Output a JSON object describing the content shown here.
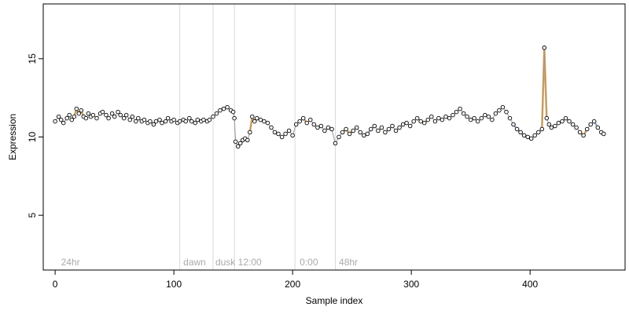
{
  "chart_data": {
    "type": "scatter",
    "xlabel": "Sample index",
    "ylabel": "Expression",
    "xlim": [
      -10,
      480
    ],
    "ylim": [
      1.5,
      18.5
    ],
    "x_ticks": [
      0,
      100,
      200,
      300,
      400
    ],
    "y_ticks": [
      5,
      10,
      15
    ],
    "grid": false,
    "legend": "none",
    "colors": {
      "line_orange": "#e8a040",
      "line_blue": "#9ab8e0",
      "line_gray": "#999999",
      "marker_edge": "#000000",
      "marker_fill": "#ffffff",
      "divider": "#d9d9d9",
      "region_text": "#aaaaaa",
      "frame": "#000000"
    },
    "region_boundaries": [
      105,
      133,
      151,
      202,
      236
    ],
    "region_labels": [
      {
        "x": 3,
        "label": "24hr"
      },
      {
        "x": 106,
        "label": "dawn"
      },
      {
        "x": 133,
        "label": "dusk"
      },
      {
        "x": 152,
        "label": "12:00"
      },
      {
        "x": 204,
        "label": "0:00"
      },
      {
        "x": 237,
        "label": "48hr"
      }
    ],
    "series": [
      {
        "color_key": "line_gray",
        "points": [
          [
            0,
            11.0
          ],
          [
            3,
            11.3
          ],
          [
            5,
            11.1
          ],
          [
            7,
            10.9
          ],
          [
            10,
            11.2
          ],
          [
            12,
            11.4
          ],
          [
            14,
            11.1
          ],
          [
            16,
            11.3
          ],
          [
            18,
            11.8
          ],
          [
            20,
            11.5
          ],
          [
            22,
            11.7
          ],
          [
            24,
            11.3
          ],
          [
            26,
            11.2
          ],
          [
            28,
            11.5
          ],
          [
            30,
            11.3
          ],
          [
            32,
            11.4
          ],
          [
            35,
            11.2
          ],
          [
            38,
            11.5
          ],
          [
            40,
            11.6
          ],
          [
            43,
            11.4
          ],
          [
            45,
            11.2
          ],
          [
            48,
            11.5
          ],
          [
            50,
            11.3
          ],
          [
            53,
            11.6
          ],
          [
            55,
            11.4
          ],
          [
            58,
            11.2
          ],
          [
            60,
            11.4
          ],
          [
            63,
            11.1
          ],
          [
            65,
            11.3
          ],
          [
            68,
            11.0
          ],
          [
            70,
            11.2
          ],
          [
            73,
            11.0
          ],
          [
            75,
            11.1
          ],
          [
            78,
            10.9
          ],
          [
            80,
            11.0
          ],
          [
            83,
            10.8
          ],
          [
            85,
            11.0
          ],
          [
            88,
            11.1
          ],
          [
            90,
            10.9
          ],
          [
            93,
            11.0
          ],
          [
            95,
            11.2
          ],
          [
            98,
            11.0
          ],
          [
            100,
            11.1
          ],
          [
            103,
            10.9
          ],
          [
            105,
            11.0
          ],
          [
            108,
            11.1
          ],
          [
            110,
            11.0
          ],
          [
            113,
            11.2
          ],
          [
            115,
            11.0
          ],
          [
            118,
            10.9
          ],
          [
            120,
            11.1
          ],
          [
            123,
            11.0
          ],
          [
            125,
            11.1
          ],
          [
            128,
            11.0
          ],
          [
            130,
            11.1
          ],
          [
            133,
            11.3
          ],
          [
            136,
            11.5
          ],
          [
            139,
            11.7
          ],
          [
            142,
            11.8
          ],
          [
            145,
            11.9
          ],
          [
            148,
            11.7
          ],
          [
            150,
            11.6
          ],
          [
            151,
            11.2
          ],
          [
            152,
            9.7
          ],
          [
            154,
            9.4
          ],
          [
            156,
            9.6
          ],
          [
            158,
            9.8
          ],
          [
            160,
            9.9
          ],
          [
            162,
            9.8
          ],
          [
            164,
            10.3
          ],
          [
            166,
            11.3
          ],
          [
            168,
            11.0
          ],
          [
            170,
            11.2
          ],
          [
            173,
            11.1
          ],
          [
            176,
            11.0
          ],
          [
            179,
            10.9
          ],
          [
            182,
            10.6
          ],
          [
            185,
            10.3
          ],
          [
            188,
            10.2
          ],
          [
            191,
            10.0
          ],
          [
            194,
            10.2
          ],
          [
            197,
            10.4
          ],
          [
            200,
            10.1
          ],
          [
            203,
            10.8
          ],
          [
            206,
            11.0
          ],
          [
            209,
            11.2
          ],
          [
            212,
            10.9
          ],
          [
            215,
            11.1
          ],
          [
            218,
            10.8
          ],
          [
            221,
            10.6
          ],
          [
            224,
            10.7
          ],
          [
            227,
            10.4
          ],
          [
            230,
            10.6
          ],
          [
            233,
            10.5
          ],
          [
            236,
            9.6
          ],
          [
            239,
            10.0
          ],
          [
            242,
            10.3
          ],
          [
            245,
            10.5
          ],
          [
            248,
            10.2
          ],
          [
            251,
            10.4
          ],
          [
            254,
            10.6
          ],
          [
            257,
            10.3
          ],
          [
            260,
            10.1
          ],
          [
            263,
            10.2
          ],
          [
            266,
            10.5
          ],
          [
            269,
            10.7
          ],
          [
            272,
            10.4
          ],
          [
            275,
            10.6
          ],
          [
            278,
            10.3
          ],
          [
            281,
            10.5
          ],
          [
            284,
            10.7
          ],
          [
            287,
            10.4
          ],
          [
            290,
            10.6
          ],
          [
            293,
            10.8
          ],
          [
            296,
            10.9
          ],
          [
            299,
            10.7
          ],
          [
            302,
            11.0
          ],
          [
            305,
            11.2
          ],
          [
            308,
            11.0
          ],
          [
            311,
            10.9
          ],
          [
            314,
            11.1
          ],
          [
            317,
            11.3
          ],
          [
            320,
            11.0
          ],
          [
            323,
            11.2
          ],
          [
            326,
            11.1
          ],
          [
            329,
            11.3
          ],
          [
            332,
            11.2
          ],
          [
            335,
            11.4
          ],
          [
            338,
            11.6
          ],
          [
            341,
            11.8
          ],
          [
            344,
            11.5
          ],
          [
            347,
            11.3
          ],
          [
            350,
            11.1
          ],
          [
            353,
            11.2
          ],
          [
            356,
            11.0
          ],
          [
            359,
            11.2
          ],
          [
            362,
            11.4
          ],
          [
            365,
            11.3
          ],
          [
            368,
            11.1
          ],
          [
            371,
            11.5
          ],
          [
            374,
            11.7
          ],
          [
            377,
            11.9
          ],
          [
            380,
            11.6
          ],
          [
            383,
            11.2
          ],
          [
            386,
            10.8
          ],
          [
            389,
            10.5
          ],
          [
            392,
            10.3
          ],
          [
            395,
            10.1
          ],
          [
            398,
            10.0
          ],
          [
            401,
            9.9
          ],
          [
            404,
            10.1
          ],
          [
            407,
            10.3
          ],
          [
            410,
            10.5
          ],
          [
            412,
            15.7
          ],
          [
            414,
            11.2
          ],
          [
            416,
            10.8
          ],
          [
            418,
            10.6
          ],
          [
            421,
            10.7
          ],
          [
            424,
            10.9
          ],
          [
            427,
            11.0
          ],
          [
            430,
            11.2
          ],
          [
            433,
            11.0
          ],
          [
            436,
            10.8
          ],
          [
            439,
            10.6
          ],
          [
            442,
            10.3
          ],
          [
            445,
            10.1
          ],
          [
            448,
            10.5
          ],
          [
            451,
            10.8
          ],
          [
            454,
            11.0
          ],
          [
            457,
            10.6
          ],
          [
            460,
            10.3
          ],
          [
            462,
            10.2
          ]
        ]
      }
    ],
    "accent_segments": [
      {
        "color_key": "line_orange",
        "x_range": [
          14,
          24
        ]
      },
      {
        "color_key": "line_blue",
        "x_range": [
          78,
          90
        ]
      },
      {
        "color_key": "line_blue",
        "x_range": [
          153,
          163
        ]
      },
      {
        "color_key": "line_orange",
        "x_range": [
          164,
          174
        ]
      },
      {
        "color_key": "line_orange",
        "x_range": [
          206,
          214
        ]
      },
      {
        "color_key": "line_orange",
        "x_range": [
          242,
          252
        ]
      },
      {
        "color_key": "line_blue",
        "x_range": [
          258,
          268
        ]
      },
      {
        "color_key": "line_orange",
        "x_range": [
          304,
          314
        ]
      },
      {
        "color_key": "line_blue",
        "x_range": [
          386,
          398
        ]
      },
      {
        "color_key": "line_orange",
        "x_range": [
          410,
          414
        ]
      },
      {
        "color_key": "line_blue",
        "x_range": [
          424,
          434
        ]
      },
      {
        "color_key": "line_orange",
        "x_range": [
          440,
          448
        ]
      },
      {
        "color_key": "line_blue",
        "x_range": [
          452,
          458
        ]
      }
    ]
  }
}
